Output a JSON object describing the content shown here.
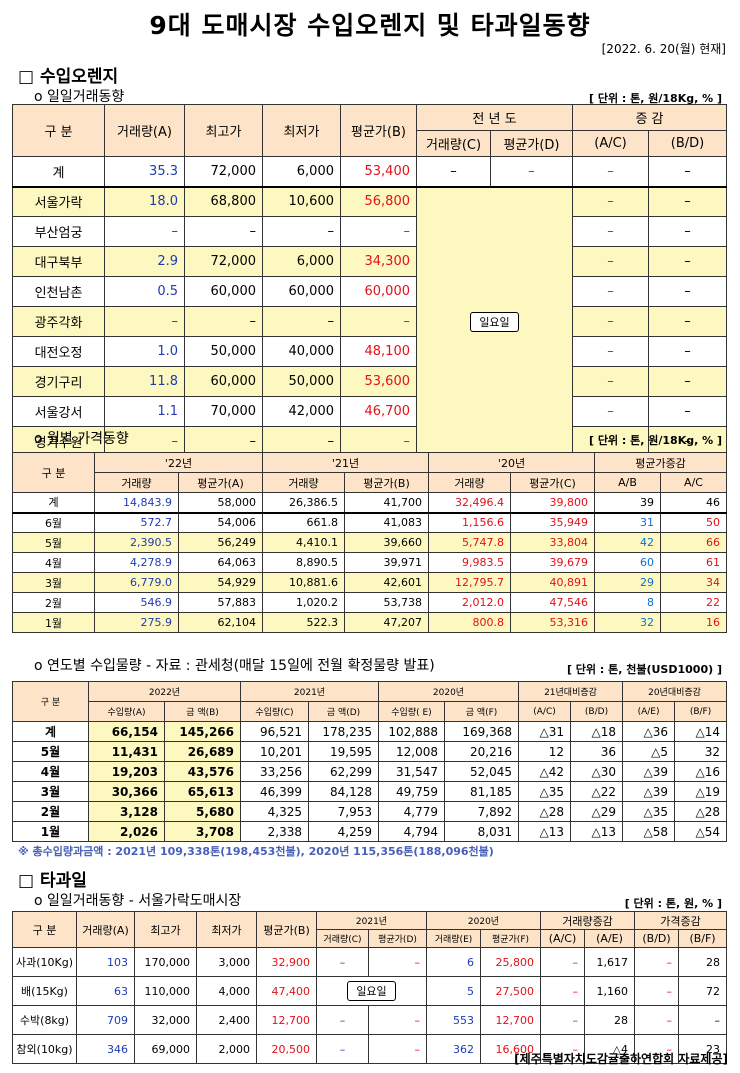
{
  "title": "9대 도매시장 수입오렌지 및 타과일동향",
  "date": "[2022. 6. 20(월) 현재]",
  "orange": {
    "heading": "□ 수입오렌지",
    "daily": {
      "subheading": "o 일일거래동향",
      "unit": "[ 단위 : 톤, 원/18Kg, % ]",
      "headers": {
        "col1": "구 분",
        "qty": "거래량(A)",
        "high": "최고가",
        "low": "최저가",
        "avg": "평균가(B)",
        "prev": "전 년 도",
        "prev_qty": "거래량(C)",
        "prev_avg": "평균가(D)",
        "chg": "증 감",
        "ac": "(A/C)",
        "bd": "(B/D)"
      },
      "holiday": "일요일",
      "total": {
        "name": "계",
        "qty": "35.3",
        "high": "72,000",
        "low": "6,000",
        "avg": "53,400",
        "c": "–",
        "d": "–",
        "ac": "–",
        "bd": "–"
      },
      "rows": [
        {
          "name": "서울가락",
          "qty": "18.0",
          "high": "68,800",
          "low": "10,600",
          "avg": "56,800",
          "ac": "–",
          "bd": "–"
        },
        {
          "name": "부산엄궁",
          "qty": "–",
          "high": "–",
          "low": "–",
          "avg": "–",
          "ac": "–",
          "bd": "–"
        },
        {
          "name": "대구북부",
          "qty": "2.9",
          "high": "72,000",
          "low": "6,000",
          "avg": "34,300",
          "ac": "–",
          "bd": "–"
        },
        {
          "name": "인천남촌",
          "qty": "0.5",
          "high": "60,000",
          "low": "60,000",
          "avg": "60,000",
          "ac": "–",
          "bd": "–"
        },
        {
          "name": "광주각화",
          "qty": "–",
          "high": "–",
          "low": "–",
          "avg": "–",
          "ac": "–",
          "bd": "–"
        },
        {
          "name": "대전오정",
          "qty": "1.0",
          "high": "50,000",
          "low": "40,000",
          "avg": "48,100",
          "ac": "–",
          "bd": "–"
        },
        {
          "name": "경기구리",
          "qty": "11.8",
          "high": "60,000",
          "low": "50,000",
          "avg": "53,600",
          "ac": "–",
          "bd": "–"
        },
        {
          "name": "서울강서",
          "qty": "1.1",
          "high": "70,000",
          "low": "42,000",
          "avg": "46,700",
          "ac": "–",
          "bd": "–"
        },
        {
          "name": "경기수원",
          "qty": "–",
          "high": "–",
          "low": "–",
          "avg": "–",
          "ac": "–",
          "bd": "–"
        }
      ]
    },
    "monthly": {
      "subheading": "o 월별 가격동향",
      "unit": "[ 단위 : 톤, 원/18Kg, % ]",
      "headers": {
        "col1": "구 분",
        "y22": "'22년",
        "y21": "'21년",
        "y20": "'20년",
        "chg": "평균가증감",
        "qty": "거래량",
        "avgA": "평균가(A)",
        "avgB": "평균가(B)",
        "avgC": "평균가(C)",
        "ab": "A/B",
        "ac": "A/C"
      },
      "rows": [
        {
          "name": "계",
          "q22": "14,843.9",
          "p22": "58,000",
          "q21": "26,386.5",
          "p21": "41,700",
          "q20": "32,496.4",
          "p20": "39,800",
          "ab": "39",
          "ac": "46"
        },
        {
          "name": "6월",
          "q22": "572.7",
          "p22": "54,006",
          "q21": "661.8",
          "p21": "41,083",
          "q20": "1,156.6",
          "p20": "35,949",
          "ab": "31",
          "ac": "50"
        },
        {
          "name": "5월",
          "q22": "2,390.5",
          "p22": "56,249",
          "q21": "4,410.1",
          "p21": "39,660",
          "q20": "5,747.8",
          "p20": "33,804",
          "ab": "42",
          "ac": "66"
        },
        {
          "name": "4월",
          "q22": "4,278.9",
          "p22": "64,063",
          "q21": "8,890.5",
          "p21": "39,971",
          "q20": "9,983.5",
          "p20": "39,679",
          "ab": "60",
          "ac": "61"
        },
        {
          "name": "3월",
          "q22": "6,779.0",
          "p22": "54,929",
          "q21": "10,881.6",
          "p21": "42,601",
          "q20": "12,795.7",
          "p20": "40,891",
          "ab": "29",
          "ac": "34"
        },
        {
          "name": "2월",
          "q22": "546.9",
          "p22": "57,883",
          "q21": "1,020.2",
          "p21": "53,738",
          "q20": "2,012.0",
          "p20": "47,546",
          "ab": "8",
          "ac": "22"
        },
        {
          "name": "1월",
          "q22": "275.9",
          "p22": "62,104",
          "q21": "522.3",
          "p21": "47,207",
          "q20": "800.8",
          "p20": "53,316",
          "ab": "32",
          "ac": "16"
        }
      ]
    },
    "yearly": {
      "subheading": "o 연도별 수입물량 - 자료 : 관세청(매달 15일에 전월 확정물량 발표)",
      "unit": "[ 단위 : 톤, 천불(USD1000) ]",
      "headers": {
        "col1": "구 분",
        "y22": "2022년",
        "y21": "2021년",
        "y20": "2020년",
        "chg21": "21년대비증감",
        "chg20": "20년대비증감",
        "qa": "수입량(A)",
        "ab": "금 액(B)",
        "qc": "수입량(C)",
        "ad": "금 액(D)",
        "qe": "수입량( E)",
        "af": "금 액(F)",
        "r_ac": "(A/C)",
        "r_bd": "(B/D)",
        "r_ae": "(A/E)",
        "r_bf": "(B/F)"
      },
      "rows": [
        {
          "name": "계",
          "a": "66,154",
          "b": "145,266",
          "c": "96,521",
          "d": "178,235",
          "e": "102,888",
          "f": "169,368",
          "ac": "△31",
          "bd": "△18",
          "ae": "△36",
          "bf": "△14"
        },
        {
          "name": "5월",
          "a": "11,431",
          "b": "26,689",
          "c": "10,201",
          "d": "19,595",
          "e": "12,008",
          "f": "20,216",
          "ac": "12",
          "bd": "36",
          "ae": "△5",
          "bf": "32"
        },
        {
          "name": "4월",
          "a": "19,203",
          "b": "43,576",
          "c": "33,256",
          "d": "62,299",
          "e": "31,547",
          "f": "52,045",
          "ac": "△42",
          "bd": "△30",
          "ae": "△39",
          "bf": "△16"
        },
        {
          "name": "3월",
          "a": "30,366",
          "b": "65,613",
          "c": "46,399",
          "d": "84,128",
          "e": "49,759",
          "f": "81,185",
          "ac": "△35",
          "bd": "△22",
          "ae": "△39",
          "bf": "△19"
        },
        {
          "name": "2월",
          "a": "3,128",
          "b": "5,680",
          "c": "4,325",
          "d": "7,953",
          "e": "4,779",
          "f": "7,892",
          "ac": "△28",
          "bd": "△29",
          "ae": "△35",
          "bf": "△28"
        },
        {
          "name": "1월",
          "a": "2,026",
          "b": "3,708",
          "c": "2,338",
          "d": "4,259",
          "e": "4,794",
          "f": "8,031",
          "ac": "△13",
          "bd": "△13",
          "ae": "△58",
          "bf": "△54"
        }
      ],
      "note": "※ 총수입량과금액 : 2021년 109,338톤(198,453천불), 2020년 115,356톤(188,096천불)"
    }
  },
  "other": {
    "heading": "□ 타과일",
    "subheading": "o 일일거래동향 - 서울가락도매시장",
    "unit": "[ 단위 : 톤, 원, % ]",
    "headers": {
      "col1": "구 분",
      "qty": "거래량(A)",
      "high": "최고가",
      "low": "최저가",
      "avg": "평균가(B)",
      "y21": "2021년",
      "y20": "2020년",
      "qchg": "거래량증감",
      "pchg": "가격증감",
      "qc": "거래량(C)",
      "pd": "평균가(D)",
      "qe": "거래량(E)",
      "pf": "평균가(F)",
      "r_ac": "(A/C)",
      "r_ae": "(A/E)",
      "r_bd": "(B/D)",
      "r_bf": "(B/F)"
    },
    "holiday": "일요일",
    "rows": [
      {
        "name": "사과(10Kg)",
        "qty": "103",
        "high": "170,000",
        "low": "3,000",
        "avg": "32,900",
        "qc": "–",
        "pd": "–",
        "qe": "6",
        "pf": "25,800",
        "ac": "–",
        "ae": "1,617",
        "bd": "–",
        "bf": "28"
      },
      {
        "name": "배(15Kg)",
        "qty": "63",
        "high": "110,000",
        "low": "4,000",
        "avg": "47,400",
        "qc": "",
        "pd": "–",
        "qe": "5",
        "pf": "27,500",
        "ac": "–",
        "ae": "1,160",
        "bd": "–",
        "bf": "72"
      },
      {
        "name": "수박(8kg)",
        "qty": "709",
        "high": "32,000",
        "low": "2,400",
        "avg": "12,700",
        "qc": "–",
        "pd": "–",
        "qe": "553",
        "pf": "12,700",
        "ac": "–",
        "ae": "28",
        "bd": "–",
        "bf": "–"
      },
      {
        "name": "참외(10kg)",
        "qty": "346",
        "high": "69,000",
        "low": "2,000",
        "avg": "20,500",
        "qc": "–",
        "pd": "–",
        "qe": "362",
        "pf": "16,600",
        "ac": "–",
        "ae": "△4",
        "bd": "–",
        "bf": "23"
      }
    ],
    "credit": "[제주특별자치도감귤출하연합회 자료제공]"
  }
}
